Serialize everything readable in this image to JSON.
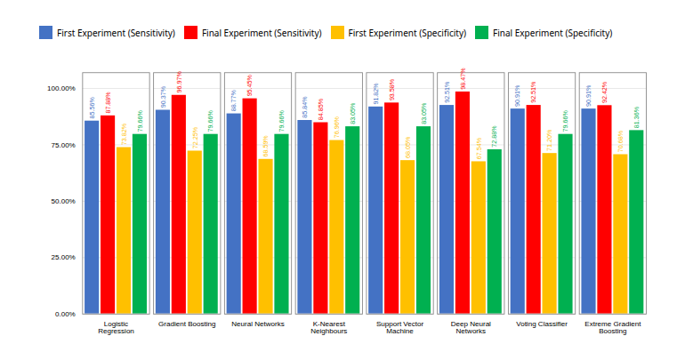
{
  "chart_data": {
    "type": "bar",
    "categories": [
      "Logistic\nRegression",
      "Gradient Boosting",
      "Neural Networks",
      "K-Nearest\nNeighbours",
      "Support Vector\nMachine",
      "Deep Neural\nNetworks",
      "Voting Classifier",
      "Extreme Gradient\nBoosting"
    ],
    "series": [
      {
        "name": "First Experiment (Sensitivity)",
        "color": "#4472C4",
        "values": [
          85.56,
          90.37,
          88.77,
          85.84,
          91.82,
          92.51,
          90.91,
          90.91
        ],
        "value_labels": [
          "85.56%",
          "90.37%",
          "88.77%",
          "85.84%",
          "91.82%",
          "92.51%",
          "90.91%",
          "90.91%"
        ]
      },
      {
        "name": "Final Experiment (Sensitivity)",
        "color": "#FF0000",
        "values": [
          87.88,
          96.97,
          95.45,
          84.85,
          93.58,
          98.47,
          92.51,
          92.42
        ],
        "value_labels": [
          "87.88%",
          "96.97%",
          "95.45%",
          "84.85%",
          "93.58%",
          "98.47%",
          "92.51%",
          "92.42%"
        ]
      },
      {
        "name": "First Experiment (Specificity)",
        "color": "#FFC000",
        "values": [
          73.82,
          72.25,
          68.59,
          76.96,
          68.05,
          67.54,
          71.2,
          70.68
        ],
        "value_labels": [
          "73.82%",
          "72.25%",
          "68.59%",
          "76.96%",
          "68.05%",
          "67.54%",
          "71.20%",
          "70.68%"
        ]
      },
      {
        "name": "Final Experiment (Specificity)",
        "color": "#00B050",
        "values": [
          79.66,
          79.66,
          79.66,
          83.05,
          83.05,
          72.88,
          79.66,
          81.36
        ],
        "value_labels": [
          "79.66%",
          "79.66%",
          "79.66%",
          "83.05%",
          "83.05%",
          "72.88%",
          "79.66%",
          "81.36%"
        ]
      }
    ],
    "ylim": [
      0,
      107
    ],
    "yticks": [
      {
        "value": 0,
        "label": "0.00%"
      },
      {
        "value": 25,
        "label": "25.00%"
      },
      {
        "value": 50,
        "label": "50.00%"
      },
      {
        "value": 75,
        "label": "75.00%"
      },
      {
        "value": 100,
        "label": "100.00%"
      }
    ],
    "grid": true,
    "legend": "top",
    "data_labels": true
  }
}
